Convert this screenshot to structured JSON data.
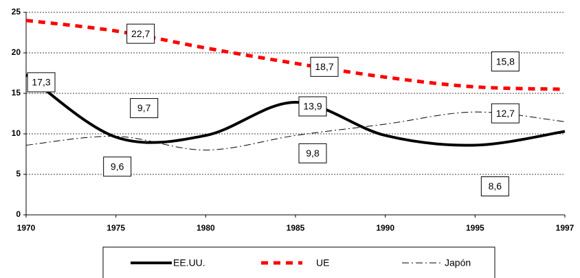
{
  "chart_data": {
    "type": "line",
    "categories": [
      "1970",
      "1975",
      "1980",
      "1985",
      "1990",
      "1995",
      "1997"
    ],
    "series": [
      {
        "name": "EE.UU.",
        "color": "#000000",
        "values": [
          17.3,
          9.6,
          9.8,
          13.9,
          9.8,
          8.6,
          10.3
        ],
        "value_labels": [
          "17,3",
          "9,6",
          null,
          "13,9",
          null,
          "8,6",
          null
        ]
      },
      {
        "name": "UE",
        "color": "#ff0000",
        "values": [
          24.0,
          22.7,
          20.6,
          18.7,
          17.0,
          15.8,
          15.5
        ],
        "value_labels": [
          null,
          "22,7",
          null,
          "18,7",
          null,
          "15,8",
          null
        ]
      },
      {
        "name": "Japón",
        "color": "#000000",
        "values": [
          8.6,
          9.7,
          8.0,
          9.8,
          11.2,
          12.7,
          11.5
        ],
        "value_labels": [
          null,
          "9,7",
          null,
          "9,8",
          null,
          "12,7",
          null
        ]
      }
    ],
    "ylim": [
      0,
      25
    ],
    "yticks": [
      0,
      5,
      10,
      15,
      20,
      25
    ],
    "grid": true,
    "legend": "bottom"
  }
}
